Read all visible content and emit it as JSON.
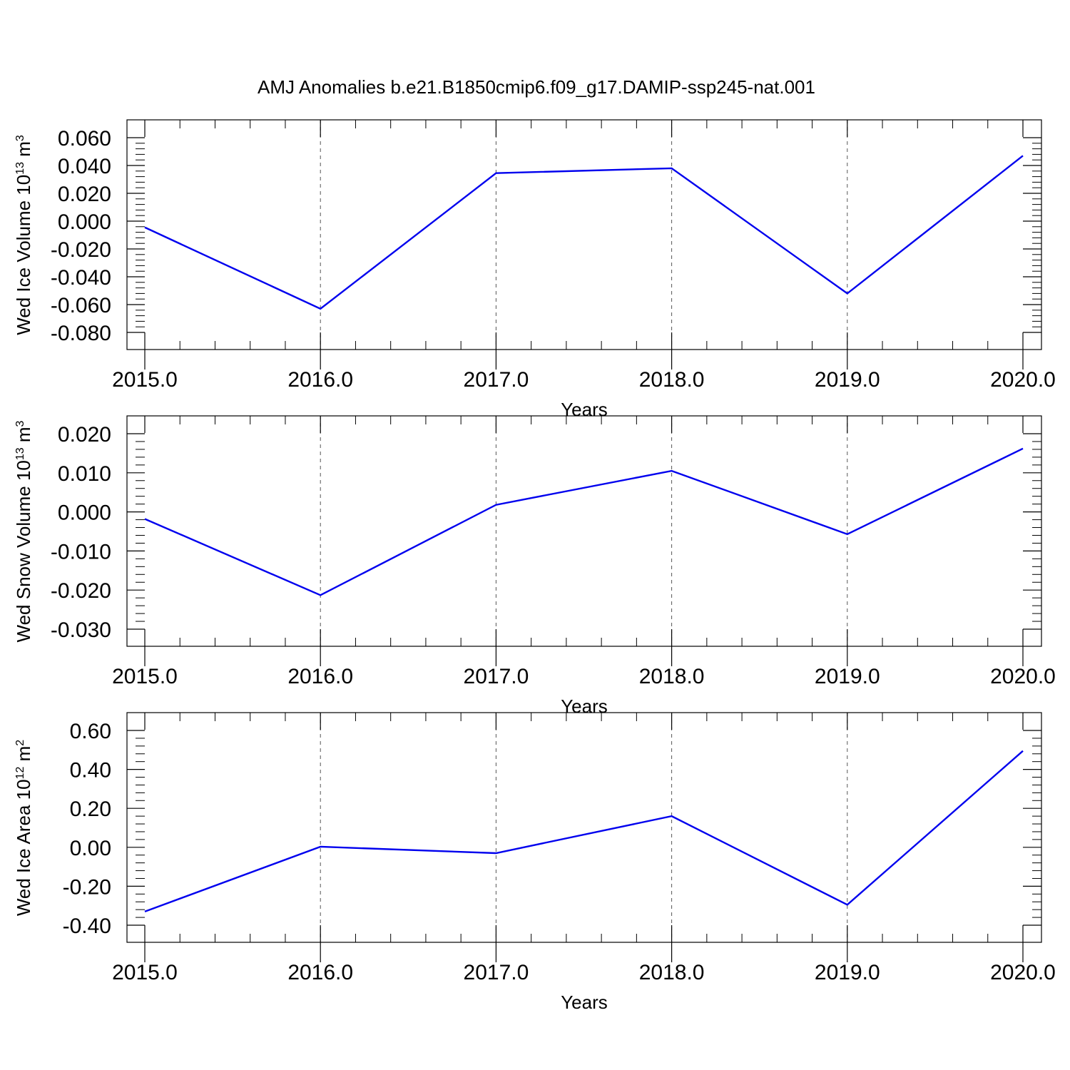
{
  "title": "AMJ Anomalies b.e21.B1850cmip6.f09_g17.DAMIP-ssp245-nat.001",
  "chart_data": [
    {
      "type": "line",
      "title": "",
      "xlabel": "Years",
      "ylabel_base": "Wed Ice Volume 10",
      "ylabel_exp": "13",
      "ylabel_unit": " m",
      "ylabel_unit_exp": "3",
      "x": [
        2015,
        2016,
        2017,
        2018,
        2019,
        2020
      ],
      "xlim": [
        2015,
        2020
      ],
      "xticks": [
        2015,
        2016,
        2017,
        2018,
        2019,
        2020
      ],
      "xtick_labels": [
        "2015.0",
        "2016.0",
        "2017.0",
        "2018.0",
        "2019.0",
        "2020.0"
      ],
      "ylim": [
        -0.08,
        0.06
      ],
      "yticks": [
        0.06,
        0.04,
        0.02,
        0.0,
        -0.02,
        -0.04,
        -0.06,
        -0.08
      ],
      "ytick_labels": [
        "0.060",
        "0.040",
        "0.020",
        "0.000",
        "-0.020",
        "-0.040",
        "-0.060",
        "-0.080"
      ],
      "series": [
        {
          "values": [
            -0.0045,
            -0.063,
            0.0345,
            0.038,
            -0.052,
            0.047
          ],
          "color": "#0000ee"
        }
      ]
    },
    {
      "type": "line",
      "title": "",
      "xlabel": "Years",
      "ylabel_base": "Wed Snow Volume 10",
      "ylabel_exp": "13",
      "ylabel_unit": " m",
      "ylabel_unit_exp": "3",
      "x": [
        2015,
        2016,
        2017,
        2018,
        2019,
        2020
      ],
      "xlim": [
        2015,
        2020
      ],
      "xticks": [
        2015,
        2016,
        2017,
        2018,
        2019,
        2020
      ],
      "xtick_labels": [
        "2015.0",
        "2016.0",
        "2017.0",
        "2018.0",
        "2019.0",
        "2020.0"
      ],
      "ylim": [
        -0.03,
        0.02
      ],
      "yticks": [
        0.02,
        0.01,
        0.0,
        -0.01,
        -0.02,
        -0.03
      ],
      "ytick_labels": [
        "0.020",
        "0.010",
        "0.000",
        "-0.010",
        "-0.020",
        "-0.030"
      ],
      "series": [
        {
          "values": [
            -0.0018,
            -0.0213,
            0.0018,
            0.0105,
            -0.0057,
            0.0162
          ],
          "color": "#0000ee"
        }
      ]
    },
    {
      "type": "line",
      "title": "",
      "xlabel": "Years",
      "ylabel_base": "Wed Ice Area 10",
      "ylabel_exp": "12",
      "ylabel_unit": " m",
      "ylabel_unit_exp": "2",
      "x": [
        2015,
        2016,
        2017,
        2018,
        2019,
        2020
      ],
      "xlim": [
        2015,
        2020
      ],
      "xticks": [
        2015,
        2016,
        2017,
        2018,
        2019,
        2020
      ],
      "xtick_labels": [
        "2015.0",
        "2016.0",
        "2017.0",
        "2018.0",
        "2019.0",
        "2020.0"
      ],
      "ylim": [
        -0.4,
        0.6
      ],
      "yticks": [
        0.6,
        0.4,
        0.2,
        0.0,
        -0.2,
        -0.4
      ],
      "ytick_labels": [
        "0.60",
        "0.40",
        "0.20",
        "0.00",
        "-0.20",
        "-0.40"
      ],
      "series": [
        {
          "values": [
            -0.33,
            0.003,
            -0.03,
            0.16,
            -0.295,
            0.495
          ],
          "color": "#0000ee"
        }
      ]
    }
  ]
}
